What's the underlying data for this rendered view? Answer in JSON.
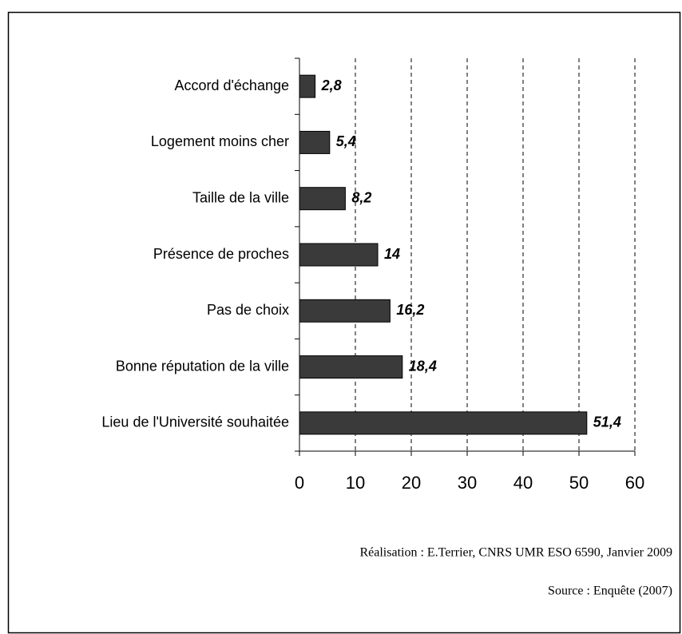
{
  "chart_data": {
    "type": "hbar",
    "categories": [
      "Accord d'échange",
      "Logement moins cher",
      "Taille de la ville",
      "Présence de proches",
      "Pas de choix",
      "Bonne réputation de la ville",
      "Lieu de l'Université souhaitée"
    ],
    "values": [
      2.8,
      5.4,
      8.2,
      14,
      16.2,
      18.4,
      51.4
    ],
    "value_labels": [
      "2,8",
      "5,4",
      "8,2",
      "14",
      "16,2",
      "18,4",
      "51,4"
    ],
    "color": "#3a3a3a",
    "xlim": [
      0,
      60
    ],
    "xticks": [
      0,
      10,
      20,
      30,
      40,
      50,
      60
    ],
    "grid": true,
    "credit": "Réalisation : E.Terrier, CNRS UMR ESO 6590, Janvier 2009",
    "source": "Source : Enquête (2007)"
  }
}
